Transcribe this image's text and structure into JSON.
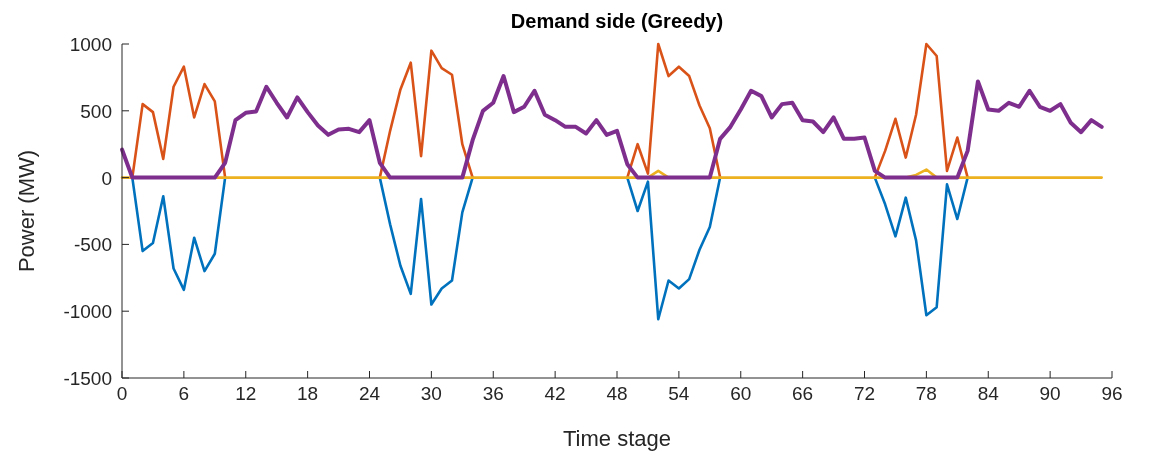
{
  "chart_data": {
    "type": "line",
    "title": "Demand side (Greedy)",
    "xlabel": "Time stage",
    "ylabel": "Power (MW)",
    "x": [
      0,
      1,
      2,
      3,
      4,
      5,
      6,
      7,
      8,
      9,
      10,
      11,
      12,
      13,
      14,
      15,
      16,
      17,
      18,
      19,
      20,
      21,
      22,
      23,
      24,
      25,
      26,
      27,
      28,
      29,
      30,
      31,
      32,
      33,
      34,
      35,
      36,
      37,
      38,
      39,
      40,
      41,
      42,
      43,
      44,
      45,
      46,
      47,
      48,
      49,
      50,
      51,
      52,
      53,
      54,
      55,
      56,
      57,
      58,
      59,
      60,
      61,
      62,
      63,
      64,
      65,
      66,
      67,
      68,
      69,
      70,
      71,
      72,
      73,
      74,
      75,
      76,
      77,
      78,
      79,
      80,
      81,
      82,
      83,
      84,
      85,
      86,
      87,
      88,
      89,
      90,
      91,
      92,
      93,
      94,
      95
    ],
    "xlim": [
      0,
      96
    ],
    "xticks": [
      0,
      6,
      12,
      18,
      24,
      30,
      36,
      42,
      48,
      54,
      60,
      66,
      72,
      78,
      84,
      90,
      96
    ],
    "ylim": [
      -1500,
      1000
    ],
    "yticks": [
      -1500,
      -1000,
      -500,
      0,
      500,
      1000
    ],
    "grid": false,
    "series": [
      {
        "color": "#0072bd",
        "values": [
          null,
          0,
          -550,
          -490,
          -140,
          -680,
          -840,
          -450,
          -700,
          -570,
          0,
          null,
          null,
          null,
          null,
          null,
          null,
          null,
          null,
          null,
          null,
          null,
          null,
          null,
          null,
          0,
          -350,
          -660,
          -870,
          -160,
          -950,
          -830,
          -770,
          -260,
          0,
          null,
          null,
          null,
          null,
          null,
          null,
          null,
          null,
          null,
          null,
          null,
          null,
          null,
          null,
          0,
          -250,
          -30,
          -1060,
          -770,
          -830,
          -760,
          -540,
          -370,
          0,
          null,
          null,
          null,
          null,
          null,
          null,
          null,
          null,
          null,
          null,
          null,
          null,
          null,
          null,
          0,
          -200,
          -440,
          -150,
          -470,
          -1030,
          -970,
          -50,
          -310,
          0,
          null,
          null,
          null,
          null,
          null,
          null,
          null,
          null,
          null,
          null,
          null,
          null,
          null
        ]
      },
      {
        "color": "#d95319",
        "values": [
          null,
          0,
          550,
          490,
          140,
          680,
          830,
          450,
          700,
          570,
          0,
          null,
          null,
          null,
          null,
          null,
          null,
          null,
          null,
          null,
          null,
          null,
          null,
          null,
          null,
          0,
          350,
          660,
          860,
          160,
          950,
          820,
          770,
          250,
          0,
          null,
          null,
          null,
          null,
          null,
          null,
          null,
          null,
          null,
          null,
          null,
          null,
          null,
          null,
          0,
          250,
          30,
          1000,
          760,
          830,
          760,
          540,
          370,
          0,
          null,
          null,
          null,
          null,
          null,
          null,
          null,
          null,
          null,
          null,
          null,
          null,
          null,
          null,
          0,
          200,
          440,
          150,
          470,
          1000,
          910,
          50,
          300,
          0,
          null,
          null,
          null,
          null,
          null,
          null,
          null,
          null,
          null,
          null,
          null,
          null,
          null
        ]
      },
      {
        "color": "#edb120",
        "values": [
          0,
          0,
          0,
          0,
          0,
          0,
          0,
          0,
          0,
          0,
          0,
          0,
          0,
          0,
          0,
          0,
          0,
          0,
          0,
          0,
          0,
          0,
          0,
          0,
          0,
          0,
          0,
          0,
          0,
          0,
          0,
          0,
          0,
          0,
          0,
          0,
          0,
          0,
          0,
          0,
          0,
          0,
          0,
          0,
          0,
          0,
          0,
          0,
          0,
          0,
          0,
          0,
          50,
          0,
          0,
          0,
          0,
          0,
          0,
          0,
          0,
          0,
          0,
          0,
          0,
          0,
          0,
          0,
          0,
          0,
          0,
          0,
          0,
          0,
          0,
          0,
          0,
          20,
          60,
          0,
          0,
          0,
          0,
          0,
          0,
          0,
          0,
          0,
          0,
          0,
          0,
          0,
          0,
          0,
          0,
          0
        ]
      },
      {
        "color": "#7e2f8e",
        "values": [
          210,
          0,
          0,
          0,
          0,
          0,
          0,
          0,
          0,
          0,
          110,
          430,
          485,
          495,
          680,
          560,
          450,
          600,
          490,
          390,
          320,
          360,
          365,
          340,
          430,
          110,
          0,
          0,
          0,
          0,
          0,
          0,
          0,
          0,
          280,
          500,
          560,
          760,
          490,
          530,
          650,
          470,
          430,
          380,
          380,
          330,
          430,
          320,
          350,
          100,
          0,
          0,
          0,
          0,
          0,
          0,
          0,
          0,
          290,
          380,
          510,
          650,
          610,
          450,
          550,
          560,
          430,
          420,
          340,
          450,
          290,
          290,
          300,
          50,
          0,
          0,
          0,
          0,
          0,
          0,
          0,
          0,
          200,
          720,
          510,
          500,
          560,
          530,
          650,
          530,
          500,
          550,
          410,
          340,
          430,
          380
        ]
      }
    ]
  }
}
